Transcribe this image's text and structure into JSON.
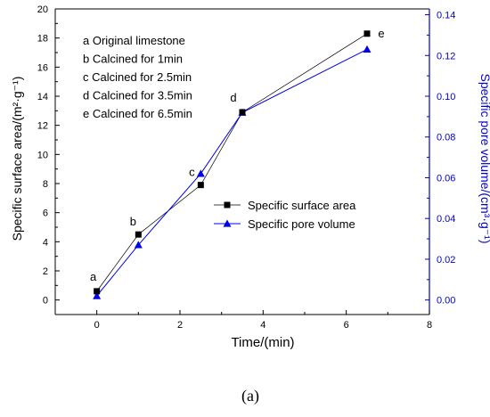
{
  "chart_data": {
    "type": "line",
    "xlabel": "Time/(min)",
    "ylabel_left": "Specific surface area/(m²·g⁻¹)",
    "ylabel_right": "Specific pore volume/(cm³·g⁻¹)",
    "xlim": [
      -1,
      8
    ],
    "ylim_left": [
      -1,
      20
    ],
    "ylim_right": [
      -0.00714,
      0.14286
    ],
    "x_ticks": [
      "0",
      "2",
      "4",
      "6",
      "8"
    ],
    "y_left_ticks": [
      "0",
      "2",
      "4",
      "6",
      "8",
      "10",
      "12",
      "14",
      "16",
      "18",
      "20"
    ],
    "y_right_ticks": [
      "0.00",
      "0.02",
      "0.04",
      "0.06",
      "0.08",
      "0.10",
      "0.12",
      "0.14"
    ],
    "colors": {
      "left_axis": "#000000",
      "right_axis": "#0000cc",
      "series_surface": "#000000",
      "series_pore": "#0000ee"
    },
    "series": [
      {
        "name": "Specific surface area",
        "axis": "left",
        "marker": "square",
        "x": [
          0,
          1,
          2.5,
          3.5,
          6.5
        ],
        "y": [
          0.6,
          4.5,
          7.9,
          12.9,
          18.3
        ]
      },
      {
        "name": "Specific pore volume",
        "axis": "right",
        "marker": "triangle",
        "x": [
          0,
          1,
          2.5,
          3.5,
          6.5
        ],
        "y": [
          0.002,
          0.027,
          0.062,
          0.092,
          0.123
        ]
      }
    ],
    "point_labels": [
      "a",
      "b",
      "c",
      "d",
      "e"
    ],
    "annotations": [
      "a  Original limestone",
      "b  Calcined for 1min",
      "c  Calcined for 2.5min",
      "d  Calcined for 3.5min",
      "e  Calcined for 6.5min"
    ],
    "legend_position": "center-right",
    "grid": false
  },
  "caption": "(a)"
}
